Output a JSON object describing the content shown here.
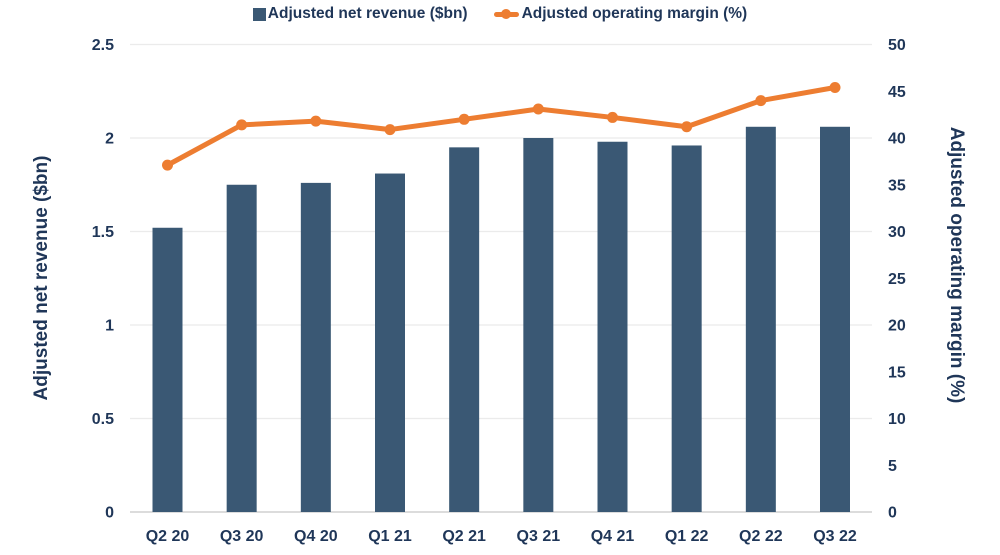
{
  "chart_data": {
    "type": "combo-bar-line",
    "categories": [
      "Q2 20",
      "Q3 20",
      "Q4 20",
      "Q1 21",
      "Q2 21",
      "Q3 21",
      "Q4 21",
      "Q1 22",
      "Q2 22",
      "Q3 22"
    ],
    "series": [
      {
        "name": "Adjusted net revenue ($bn)",
        "type": "bar",
        "axis": "left",
        "color": "#3a5874",
        "values": [
          1.52,
          1.75,
          1.76,
          1.81,
          1.95,
          2.0,
          1.98,
          1.96,
          2.06,
          2.06
        ]
      },
      {
        "name": "Adjusted operating margin (%)",
        "type": "line",
        "axis": "right",
        "color": "#ed7d31",
        "values": [
          37.1,
          41.4,
          41.8,
          40.9,
          42.0,
          43.1,
          42.2,
          41.2,
          44.0,
          45.4
        ]
      }
    ],
    "left_axis": {
      "title": "Adjusted net revenue ($bn)",
      "min": 0,
      "max": 2.5,
      "step": 0.5,
      "tick_labels": [
        "0",
        "0.5",
        "1",
        "1.5",
        "2",
        "2.5"
      ]
    },
    "right_axis": {
      "title": "Adjusted operating margin (%)",
      "min": 0,
      "max": 50,
      "step": 5,
      "tick_labels": [
        "0",
        "5",
        "10",
        "15",
        "20",
        "25",
        "30",
        "35",
        "40",
        "45",
        "50"
      ]
    },
    "grid": true,
    "legend_position": "top",
    "colors": {
      "text": "#1f3658",
      "gridline": "#ebebeb",
      "baseline": "#dcdcdc",
      "bar": "#3a5874",
      "line": "#ed7d31"
    }
  },
  "legend": {
    "items": [
      {
        "label": "Adjusted net revenue ($bn)",
        "marker": "square",
        "color": "#3a5874"
      },
      {
        "label": "Adjusted operating margin (%)",
        "marker": "line-dot",
        "color": "#ed7d31"
      }
    ]
  }
}
